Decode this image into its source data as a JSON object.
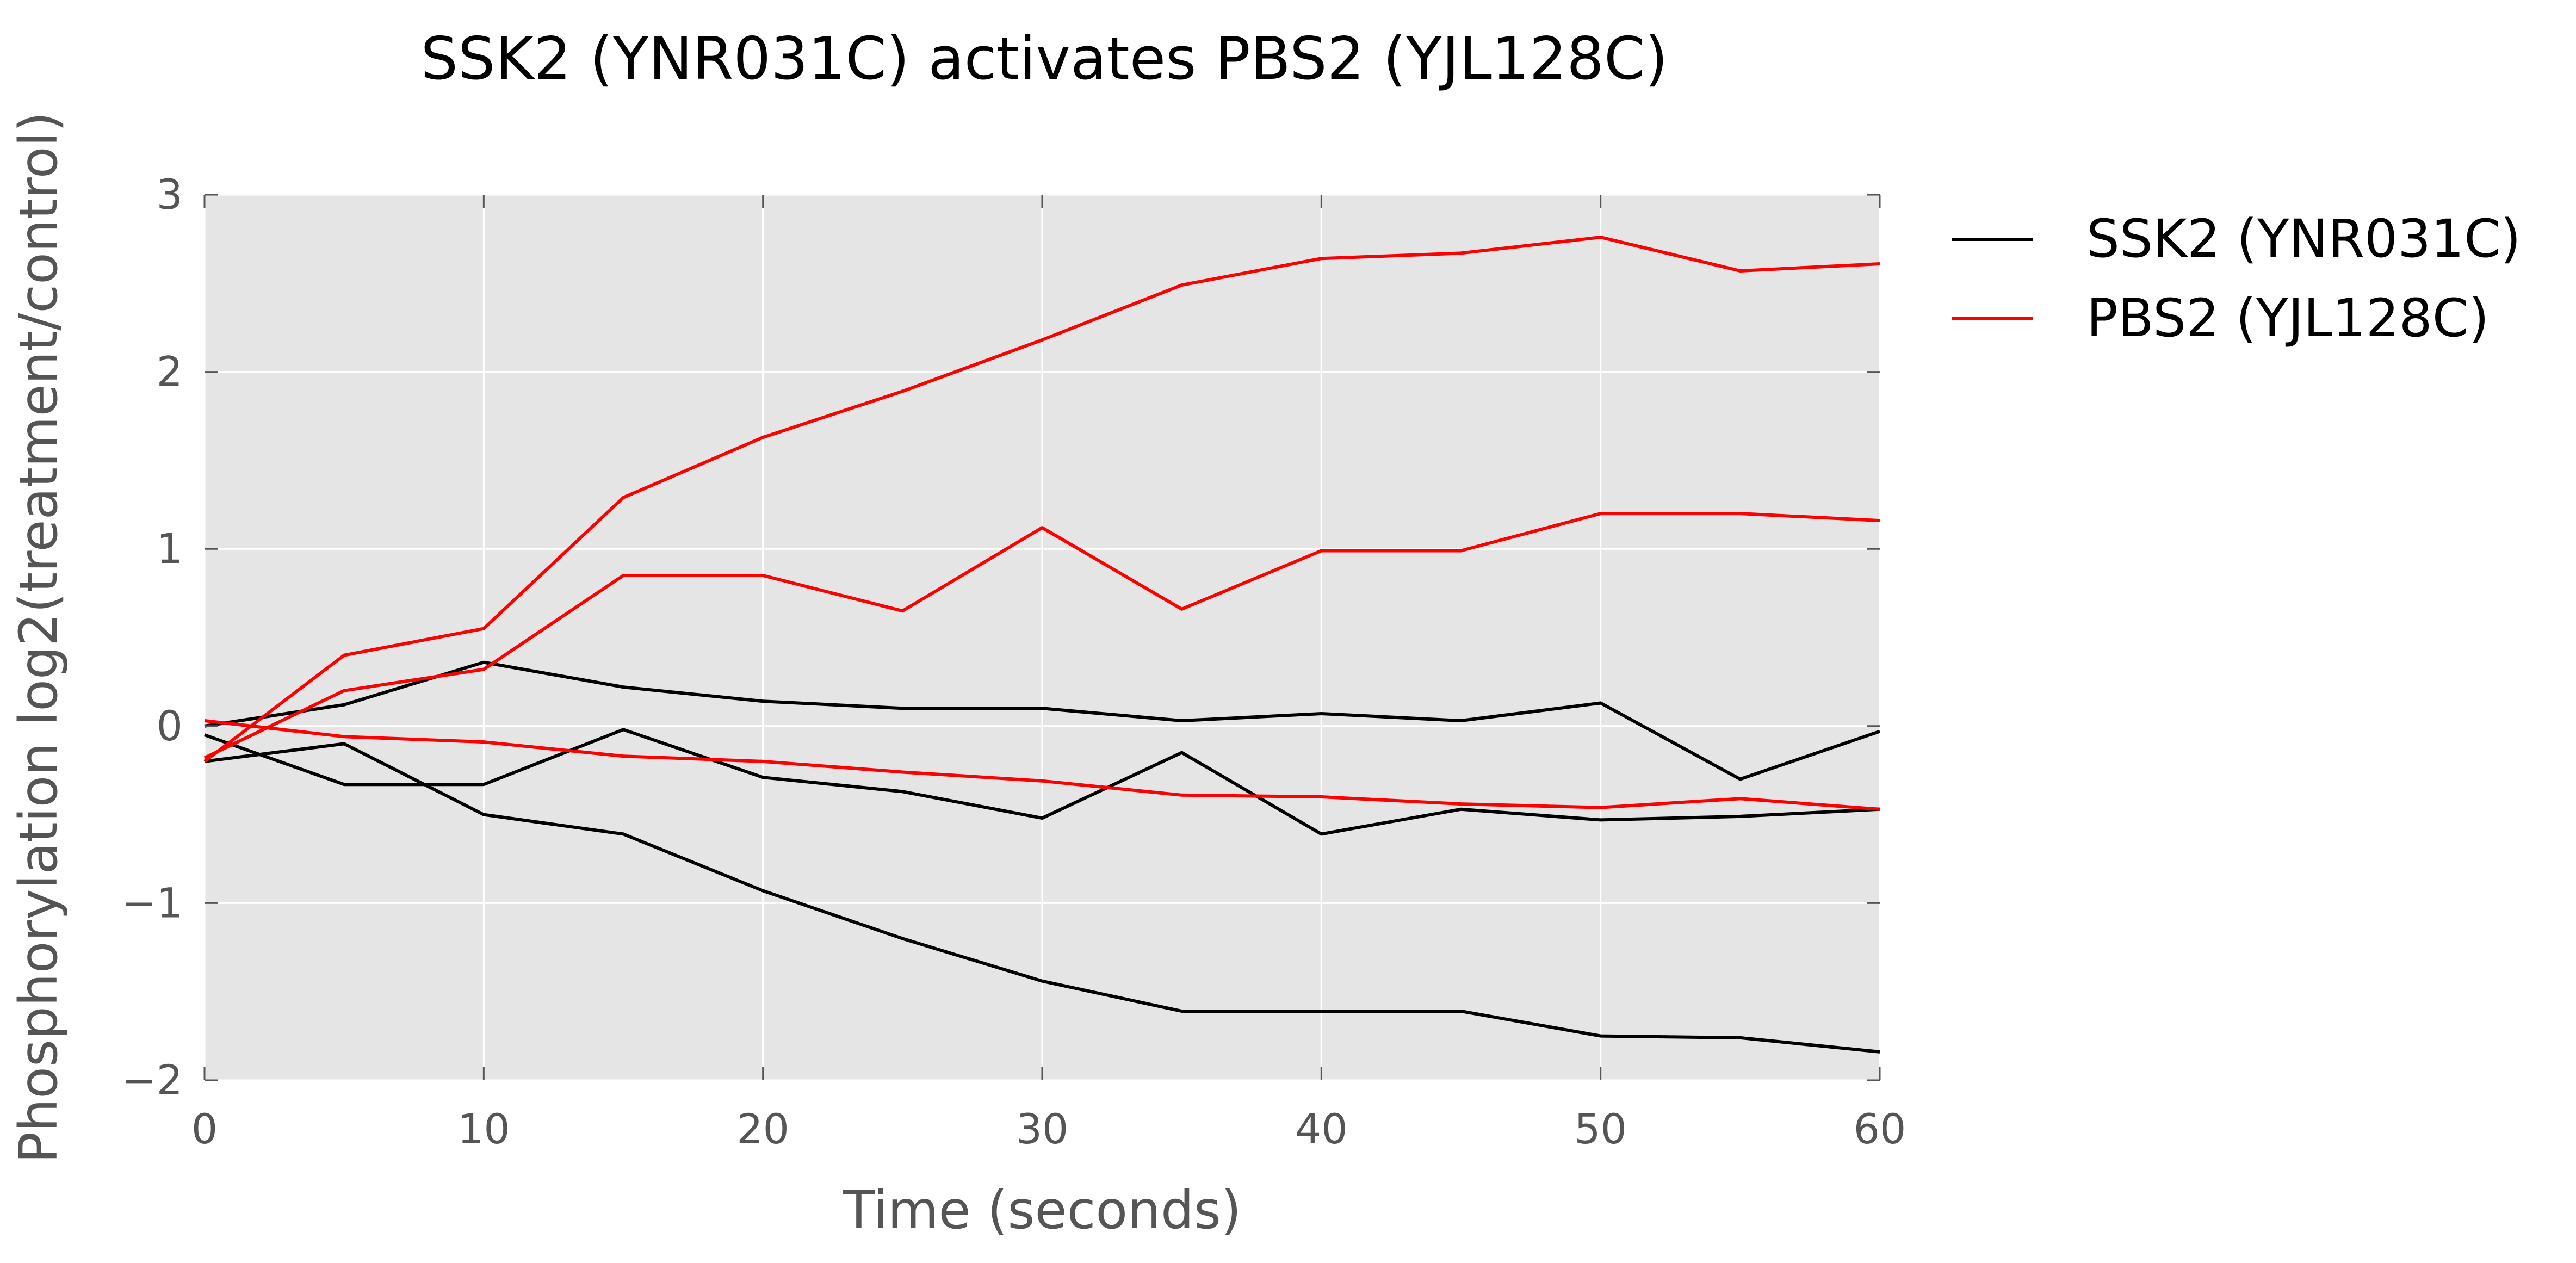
{
  "chart_data": {
    "type": "line",
    "title": "SSK2 (YNR031C) activates PBS2 (YJL128C)",
    "xlabel": "Time (seconds)",
    "ylabel": "Phosphorylation log2(treatment/control)",
    "xlim": [
      0,
      60
    ],
    "ylim": [
      -2,
      3
    ],
    "xticks": [
      0,
      10,
      20,
      30,
      40,
      50,
      60
    ],
    "yticks": [
      -2,
      -1,
      0,
      1,
      2,
      3
    ],
    "xtick_labels": [
      "0",
      "10",
      "20",
      "30",
      "40",
      "50",
      "60"
    ],
    "ytick_labels": [
      "−2",
      "−1",
      "0",
      "1",
      "2",
      "3"
    ],
    "grid": true,
    "background": "#e5e5e5",
    "legend_position": "outside-top-right",
    "legend": [
      {
        "label": "SSK2 (YNR031C)",
        "color": "#000000"
      },
      {
        "label": "PBS2 (YJL128C)",
        "color": "#ff0000"
      }
    ],
    "x": [
      0,
      5,
      10,
      15,
      20,
      25,
      30,
      35,
      40,
      45,
      50,
      55,
      60
    ],
    "series": [
      {
        "group": "SSK2 (YNR031C)",
        "color": "#000000",
        "values": [
          0.0,
          0.12,
          0.36,
          0.22,
          0.14,
          0.1,
          0.1,
          0.03,
          0.07,
          0.03,
          0.13,
          -0.3,
          -0.03
        ]
      },
      {
        "group": "SSK2 (YNR031C)",
        "color": "#000000",
        "values": [
          -0.2,
          -0.1,
          -0.5,
          -0.61,
          -0.93,
          -1.2,
          -1.44,
          -1.61,
          -1.61,
          -1.61,
          -1.75,
          -1.76,
          -1.84
        ]
      },
      {
        "group": "SSK2 (YNR031C)",
        "color": "#000000",
        "values": [
          -0.05,
          -0.33,
          -0.33,
          -0.02,
          -0.29,
          -0.37,
          -0.52,
          -0.15,
          -0.61,
          -0.47,
          -0.53,
          -0.51,
          -0.47
        ]
      },
      {
        "group": "PBS2 (YJL128C)",
        "color": "#ff0000",
        "values": [
          -0.2,
          0.4,
          0.55,
          1.29,
          1.63,
          1.89,
          2.18,
          2.49,
          2.64,
          2.67,
          2.76,
          2.57,
          2.61
        ]
      },
      {
        "group": "PBS2 (YJL128C)",
        "color": "#ff0000",
        "values": [
          -0.18,
          0.2,
          0.32,
          0.85,
          0.85,
          0.65,
          1.12,
          0.66,
          0.99,
          0.99,
          1.2,
          1.2,
          1.16
        ]
      },
      {
        "group": "PBS2 (YJL128C)",
        "color": "#ff0000",
        "values": [
          0.03,
          -0.06,
          -0.09,
          -0.17,
          -0.2,
          -0.26,
          -0.31,
          -0.39,
          -0.4,
          -0.44,
          -0.46,
          -0.41,
          -0.47
        ]
      }
    ]
  }
}
